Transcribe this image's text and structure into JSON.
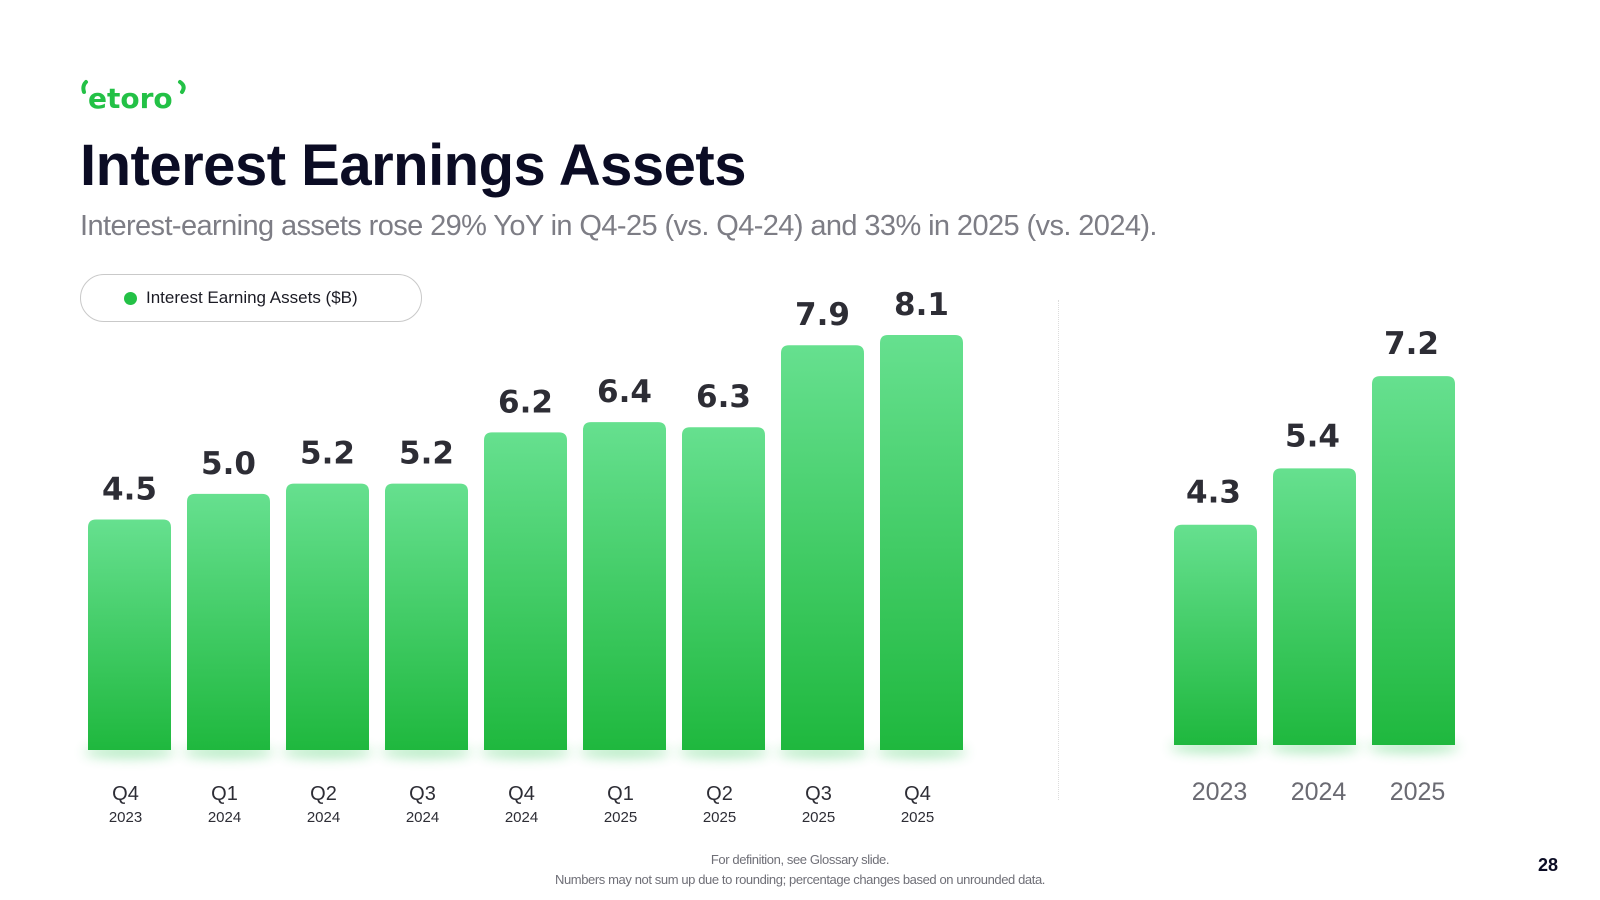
{
  "brand": {
    "logo_text": "etoro",
    "accent_color": "#23c146"
  },
  "title": "Interest Earnings Assets",
  "subtitle": "Interest-earning assets rose 29% YoY in Q4-25 (vs. Q4-24) and 33% in 2025 (vs. 2024).",
  "legend": {
    "label": "Interest Earning Assets ($B)",
    "placement": "top-left"
  },
  "chart_data": [
    {
      "type": "bar",
      "categories": [
        "Q4 2023",
        "Q1 2024",
        "Q2 2024",
        "Q3 2024",
        "Q4 2024",
        "Q1 2025",
        "Q2 2025",
        "Q3 2025",
        "Q4 2025"
      ],
      "tick_labels": [
        {
          "quarter": "Q4",
          "year": "2023"
        },
        {
          "quarter": "Q1",
          "year": "2024"
        },
        {
          "quarter": "Q2",
          "year": "2024"
        },
        {
          "quarter": "Q3",
          "year": "2024"
        },
        {
          "quarter": "Q4",
          "year": "2024"
        },
        {
          "quarter": "Q1",
          "year": "2025"
        },
        {
          "quarter": "Q2",
          "year": "2025"
        },
        {
          "quarter": "Q3",
          "year": "2025"
        },
        {
          "quarter": "Q4",
          "year": "2025"
        }
      ],
      "values": [
        4.5,
        5.0,
        5.2,
        5.2,
        6.2,
        6.4,
        6.3,
        7.9,
        8.1
      ],
      "value_labels": [
        "4.5",
        "5.0",
        "5.2",
        "5.2",
        "6.2",
        "6.4",
        "6.3",
        "7.9",
        "8.1"
      ],
      "series": [
        {
          "name": "Interest Earning Assets ($B)"
        }
      ],
      "title": "",
      "xlabel": "",
      "ylabel": "",
      "ylim": [
        0,
        8.1
      ],
      "grid": false,
      "bar_color_top": "#66e08f",
      "bar_color_bottom": "#1fb83e"
    },
    {
      "type": "bar",
      "categories": [
        "2023",
        "2024",
        "2025"
      ],
      "values": [
        4.3,
        5.4,
        7.2
      ],
      "value_labels": [
        "4.3",
        "5.4",
        "7.2"
      ],
      "title": "",
      "xlabel": "",
      "ylabel": "",
      "ylim": [
        0,
        8.1
      ],
      "grid": false,
      "bar_color_top": "#66e08f",
      "bar_color_bottom": "#1fb83e"
    }
  ],
  "footnotes": [
    "For definition, see Glossary slide.",
    "Numbers may not sum up due to rounding; percentage changes based on unrounded data."
  ],
  "page_number": "28"
}
